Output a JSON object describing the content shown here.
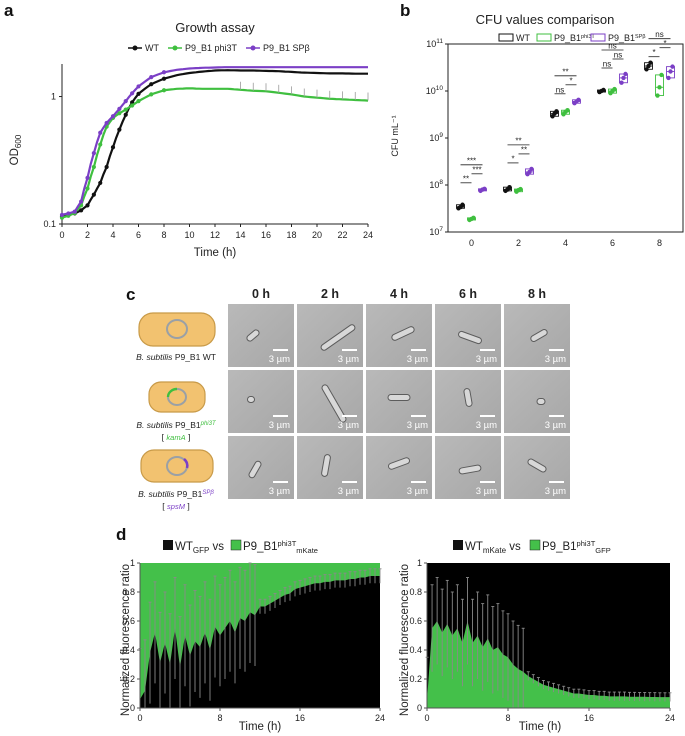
{
  "panel_labels": {
    "a": "a",
    "b": "b",
    "c": "c",
    "d": "d"
  },
  "colors": {
    "wt": "#111111",
    "phi3t": "#3fbf3f",
    "spb": "#7b3fc6",
    "fluor_green": "#44c04a",
    "cell": "#f2c270"
  },
  "chart_data": [
    {
      "id": "growth",
      "type": "line",
      "title": "Growth assay",
      "xlabel": "Time (h)",
      "ylabel_main": "OD",
      "ylabel_sub": "600",
      "yscale": "log",
      "xlim": [
        0,
        24
      ],
      "ylim": [
        0.1,
        1.8
      ],
      "xticks": [
        "0",
        "2",
        "4",
        "6",
        "8",
        "10",
        "12",
        "14",
        "16",
        "18",
        "20",
        "22",
        "24"
      ],
      "yticks": [
        "0.1",
        "1"
      ],
      "legend": [
        "WT",
        "P9_B1 phi3T",
        "P9_B1 SPβ"
      ],
      "series": [
        {
          "name": "WT",
          "color": "#111111",
          "x": [
            0,
            0.5,
            1,
            1.5,
            2,
            2.5,
            3,
            3.5,
            4,
            4.5,
            5,
            5.5,
            6,
            7,
            8,
            9,
            10,
            11,
            12,
            13,
            14,
            15,
            16,
            17,
            18,
            19,
            20,
            21,
            22,
            23,
            24
          ],
          "y": [
            0.115,
            0.118,
            0.121,
            0.128,
            0.14,
            0.17,
            0.21,
            0.28,
            0.4,
            0.55,
            0.72,
            0.9,
            1.05,
            1.25,
            1.38,
            1.47,
            1.53,
            1.57,
            1.6,
            1.61,
            1.6,
            1.6,
            1.59,
            1.58,
            1.56,
            1.54,
            1.53,
            1.52,
            1.52,
            1.51,
            1.51
          ]
        },
        {
          "name": "P9_B1 phi3T",
          "color": "#3fbf3f",
          "x": [
            0,
            0.5,
            1,
            1.5,
            2,
            2.5,
            3,
            3.5,
            4,
            4.5,
            5,
            5.5,
            6,
            7,
            8,
            9,
            10,
            11,
            12,
            13,
            14,
            15,
            16,
            17,
            18,
            19,
            20,
            21,
            22,
            23,
            24
          ],
          "y": [
            0.112,
            0.116,
            0.122,
            0.14,
            0.19,
            0.28,
            0.42,
            0.58,
            0.68,
            0.74,
            0.79,
            0.85,
            0.92,
            1.04,
            1.12,
            1.15,
            1.16,
            1.15,
            1.15,
            1.15,
            1.13,
            1.11,
            1.1,
            1.07,
            1.04,
            1.0,
            0.98,
            0.96,
            0.95,
            0.94,
            0.93
          ]
        },
        {
          "name": "P9_B1 SPβ",
          "color": "#7b3fc6",
          "x": [
            0,
            0.5,
            1,
            1.5,
            2,
            2.5,
            3,
            3.5,
            4,
            4.5,
            5,
            5.5,
            6,
            7,
            8,
            9,
            10,
            11,
            12,
            13,
            14,
            15,
            16,
            17,
            18,
            19,
            20,
            21,
            22,
            23,
            24
          ],
          "y": [
            0.118,
            0.121,
            0.125,
            0.15,
            0.23,
            0.36,
            0.52,
            0.62,
            0.7,
            0.8,
            0.92,
            1.06,
            1.2,
            1.42,
            1.55,
            1.62,
            1.66,
            1.68,
            1.69,
            1.7,
            1.7,
            1.7,
            1.7,
            1.7,
            1.7,
            1.7,
            1.7,
            1.7,
            1.7,
            1.7,
            1.7
          ]
        }
      ]
    },
    {
      "id": "cfu",
      "type": "box",
      "title": "CFU values comparison",
      "xlabel": "",
      "ylabel": "CFU mL⁻¹",
      "yscale": "log",
      "ylim": [
        10000000.0,
        100000000000.0
      ],
      "yticks": [
        {
          "base": "10",
          "exp": "7"
        },
        {
          "base": "10",
          "exp": "8"
        },
        {
          "base": "10",
          "exp": "9"
        },
        {
          "base": "10",
          "exp": "10"
        },
        {
          "base": "10",
          "exp": "11"
        }
      ],
      "categories": [
        "0",
        "2",
        "4",
        "6",
        "8"
      ],
      "legend": [
        {
          "label": "WT",
          "sup": ""
        },
        {
          "label": "P9_B1",
          "sup": "phi3T"
        },
        {
          "label": "P9_B1",
          "sup": "SPβ"
        }
      ],
      "series": [
        {
          "name": "WT",
          "color": "#111111",
          "points": [
            [
              32000000.0,
              34000000.0,
              38000000.0
            ],
            [
              75000000.0,
              80000000.0,
              90000000.0
            ],
            [
              2900000000.0,
              3300000000.0,
              3700000000.0
            ],
            [
              9500000000.0,
              10000000000.0,
              10500000000.0
            ],
            [
              29000000000.0,
              34000000000.0,
              40000000000.0
            ]
          ]
        },
        {
          "name": "P9_B1 phi3T",
          "color": "#3fbf3f",
          "points": [
            [
              18000000.0,
              19000000.0,
              20000000.0
            ],
            [
              72000000.0,
              78000000.0,
              82000000.0
            ],
            [
              3200000000.0,
              3600000000.0,
              3900000000.0
            ],
            [
              9000000000.0,
              10000000000.0,
              11000000000.0
            ],
            [
              8000000000.0,
              12000000000.0,
              22000000000.0
            ]
          ]
        },
        {
          "name": "P9_B1 SPβ",
          "color": "#7b3fc6",
          "points": [
            [
              75000000.0,
              80000000.0,
              83000000.0
            ],
            [
              170000000.0,
              190000000.0,
              220000000.0
            ],
            [
              5500000000.0,
              6000000000.0,
              6500000000.0
            ],
            [
              15000000000.0,
              19000000000.0,
              23000000000.0
            ],
            [
              19000000000.0,
              26000000000.0,
              33000000000.0
            ]
          ]
        }
      ],
      "significance": [
        {
          "group": 0,
          "pair": "wt-phi3t",
          "label": "**"
        },
        {
          "group": 0,
          "pair": "phi3t-spb",
          "label": "***"
        },
        {
          "group": 0,
          "pair": "wt-spb",
          "label": "***"
        },
        {
          "group": 1,
          "pair": "wt-phi3t",
          "label": "*"
        },
        {
          "group": 1,
          "pair": "phi3t-spb",
          "label": "**"
        },
        {
          "group": 1,
          "pair": "wt-spb",
          "label": "**"
        },
        {
          "group": 2,
          "pair": "wt-phi3t",
          "label": "ns"
        },
        {
          "group": 2,
          "pair": "phi3t-spb",
          "label": "*"
        },
        {
          "group": 2,
          "pair": "wt-spb",
          "label": "**"
        },
        {
          "group": 3,
          "pair": "wt-phi3t",
          "label": "ns"
        },
        {
          "group": 3,
          "pair": "phi3t-spb",
          "label": "ns"
        },
        {
          "group": 3,
          "pair": "wt-spb",
          "label": "ns"
        },
        {
          "group": 4,
          "pair": "wt-phi3t",
          "label": "*"
        },
        {
          "group": 4,
          "pair": "phi3t-spb",
          "label": "*"
        },
        {
          "group": 4,
          "pair": "wt-spb",
          "label": "ns"
        }
      ]
    },
    {
      "id": "fluor1",
      "type": "area",
      "ylabel": "Normalized fluorescence ratio",
      "xlabel": "Time (h)",
      "xlim": [
        0,
        24
      ],
      "ylim": [
        0,
        1
      ],
      "xticks": [
        "0",
        "8",
        "16",
        "24"
      ],
      "yticks": [
        "0",
        "0.2",
        "0.4",
        "0.6",
        "0.8",
        "1"
      ],
      "legend": [
        {
          "label": "WT",
          "sub": "GFP",
          "sup": "",
          "color": "#111111"
        },
        {
          "label": "P9_B1",
          "sub": "mKate",
          "sup": "phi3T",
          "color": "#44c04a"
        }
      ],
      "vs_label": "vs",
      "bottom_series": "WT GFP",
      "top_series": "P9_B1 phi3T mKate",
      "x": [
        0,
        0.5,
        1,
        1.5,
        2,
        2.5,
        3,
        3.5,
        4,
        4.5,
        5,
        5.5,
        6,
        6.5,
        7,
        7.5,
        8,
        8.5,
        9,
        9.5,
        10,
        10.5,
        11,
        11.5,
        12,
        12.5,
        13,
        13.5,
        14,
        14.5,
        15,
        15.5,
        16,
        16.5,
        17,
        17.5,
        18,
        18.5,
        19,
        19.5,
        20,
        20.5,
        21,
        21.5,
        22,
        22.5,
        23,
        23.5,
        24
      ],
      "y": [
        0.06,
        0.12,
        0.38,
        0.52,
        0.31,
        0.45,
        0.3,
        0.55,
        0.28,
        0.5,
        0.36,
        0.46,
        0.42,
        0.52,
        0.4,
        0.56,
        0.5,
        0.55,
        0.6,
        0.52,
        0.62,
        0.6,
        0.66,
        0.64,
        0.7,
        0.7,
        0.72,
        0.74,
        0.76,
        0.78,
        0.79,
        0.82,
        0.83,
        0.84,
        0.85,
        0.86,
        0.86,
        0.87,
        0.87,
        0.88,
        0.88,
        0.88,
        0.89,
        0.89,
        0.9,
        0.9,
        0.91,
        0.91,
        0.91
      ]
    },
    {
      "id": "fluor2",
      "type": "area",
      "ylabel": "Normalized fluorescence ratio",
      "xlabel": "Time (h)",
      "xlim": [
        0,
        24
      ],
      "ylim": [
        0,
        1
      ],
      "xticks": [
        "0",
        "8",
        "16",
        "24"
      ],
      "yticks": [
        "0",
        "0.2",
        "0.4",
        "0.6",
        "0.8",
        "1"
      ],
      "legend": [
        {
          "label": "WT",
          "sub": "mKate",
          "sup": "",
          "color": "#111111"
        },
        {
          "label": "P9_B1",
          "sub": "GFP",
          "sup": "phi3T",
          "color": "#44c04a"
        }
      ],
      "vs_label": "vs",
      "bottom_series": "P9_B1 phi3T GFP",
      "top_series": "WT mKate",
      "x": [
        0,
        0.5,
        1,
        1.5,
        2,
        2.5,
        3,
        3.5,
        4,
        4.5,
        5,
        5.5,
        6,
        6.5,
        7,
        7.5,
        8,
        8.5,
        9,
        9.5,
        10,
        10.5,
        11,
        11.5,
        12,
        12.5,
        13,
        13.5,
        14,
        14.5,
        15,
        15.5,
        16,
        16.5,
        17,
        17.5,
        18,
        18.5,
        19,
        19.5,
        20,
        20.5,
        21,
        21.5,
        22,
        22.5,
        23,
        23.5,
        24
      ],
      "y": [
        0.05,
        0.55,
        0.6,
        0.52,
        0.58,
        0.5,
        0.55,
        0.45,
        0.6,
        0.45,
        0.5,
        0.42,
        0.48,
        0.4,
        0.42,
        0.37,
        0.35,
        0.3,
        0.27,
        0.25,
        0.22,
        0.2,
        0.18,
        0.16,
        0.15,
        0.14,
        0.13,
        0.12,
        0.11,
        0.1,
        0.1,
        0.095,
        0.09,
        0.09,
        0.085,
        0.085,
        0.08,
        0.08,
        0.08,
        0.08,
        0.078,
        0.078,
        0.077,
        0.077,
        0.076,
        0.076,
        0.075,
        0.075,
        0.075
      ]
    }
  ],
  "microscopy": {
    "columns": [
      "0 h",
      "2 h",
      "4 h",
      "6 h",
      "8 h"
    ],
    "scale_bar": "3 µm",
    "rows": [
      {
        "species": "B. subtilis",
        "strain": "P9_B1",
        "sup": "",
        "suffix": " WT",
        "gene": "",
        "ring_color": ""
      },
      {
        "species": "B. subtilis",
        "strain": "P9_B1",
        "sup": "phi3T",
        "suffix": "",
        "gene": "kamA",
        "ring_color": "#3fbf3f"
      },
      {
        "species": "B. subtilis",
        "strain": "P9_B1",
        "sup": "SPβ",
        "suffix": "",
        "gene": "spsM",
        "ring_color": "#7b3fc6"
      }
    ]
  }
}
